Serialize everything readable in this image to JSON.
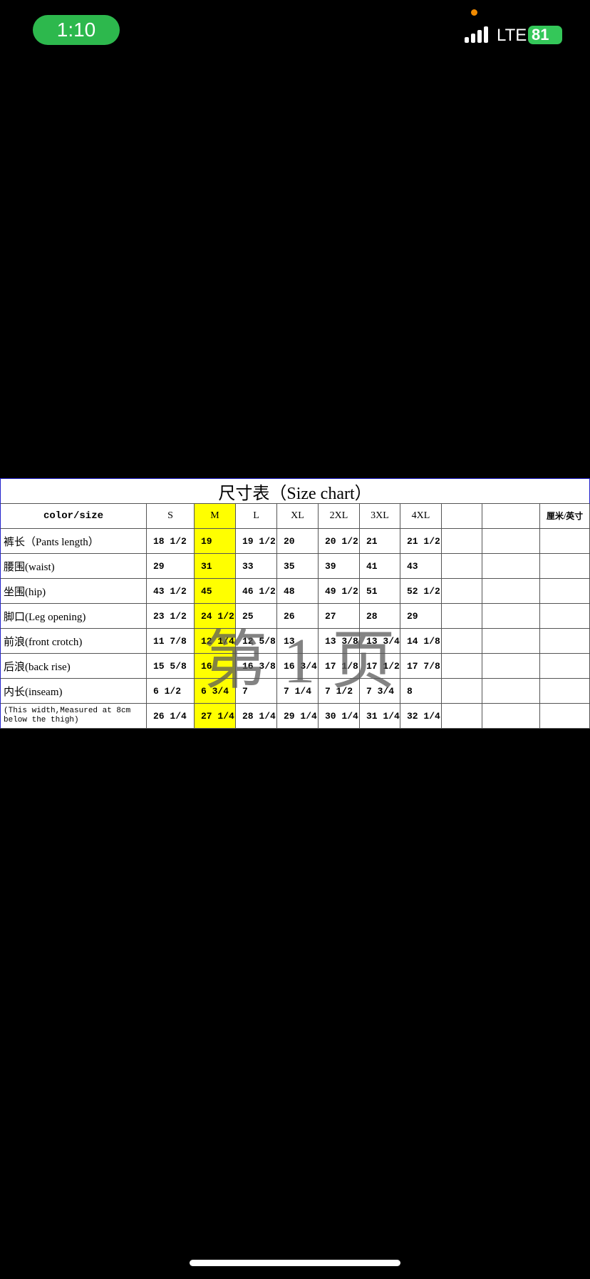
{
  "status_bar": {
    "time": "1:10",
    "network": "LTE",
    "battery": "81"
  },
  "table": {
    "title": "尺寸表（Size chart）",
    "headers": [
      "color/size",
      "S",
      "M",
      "L",
      "XL",
      "2XL",
      "3XL",
      "4XL"
    ],
    "unit_header": "厘米/英寸",
    "rows": [
      [
        "裤长（Pants length）",
        "18 1/2",
        "19",
        "19 1/2",
        "20",
        "20 1/2",
        "21",
        "21 1/2"
      ],
      [
        "腰围(waist)",
        "29",
        "31",
        "33",
        "35",
        "39",
        "41",
        "43"
      ],
      [
        "坐围(hip)",
        "43 1/2",
        "45",
        "46 1/2",
        "48",
        "49 1/2",
        "51",
        "52 1/2"
      ],
      [
        "脚口(Leg opening)",
        "23 1/2",
        "24 1/2",
        "25",
        "26",
        "27",
        "28",
        "29"
      ],
      [
        "前浪(front crotch)",
        "11 7/8",
        "12 1/4",
        "12 5/8",
        "13",
        "13 3/8",
        "13 3/4",
        "14 1/8"
      ],
      [
        "后浪(back rise)",
        "15 5/8",
        "16",
        "16 3/8",
        "16 3/4",
        "17 1/8",
        "17 1/2",
        "17 7/8"
      ],
      [
        "内长(inseam)",
        "6 1/2",
        "6 3/4",
        "7",
        "7 1/4",
        "7 1/2",
        "7 3/4",
        "8"
      ],
      [
        "(This width,Measured at 8cm below the thigh)",
        "26 1/4",
        "27 1/4",
        "28 1/4",
        "29 1/4",
        "30 1/4",
        "31 1/4",
        "32 1/4"
      ]
    ],
    "watermark": "第 1 页"
  }
}
